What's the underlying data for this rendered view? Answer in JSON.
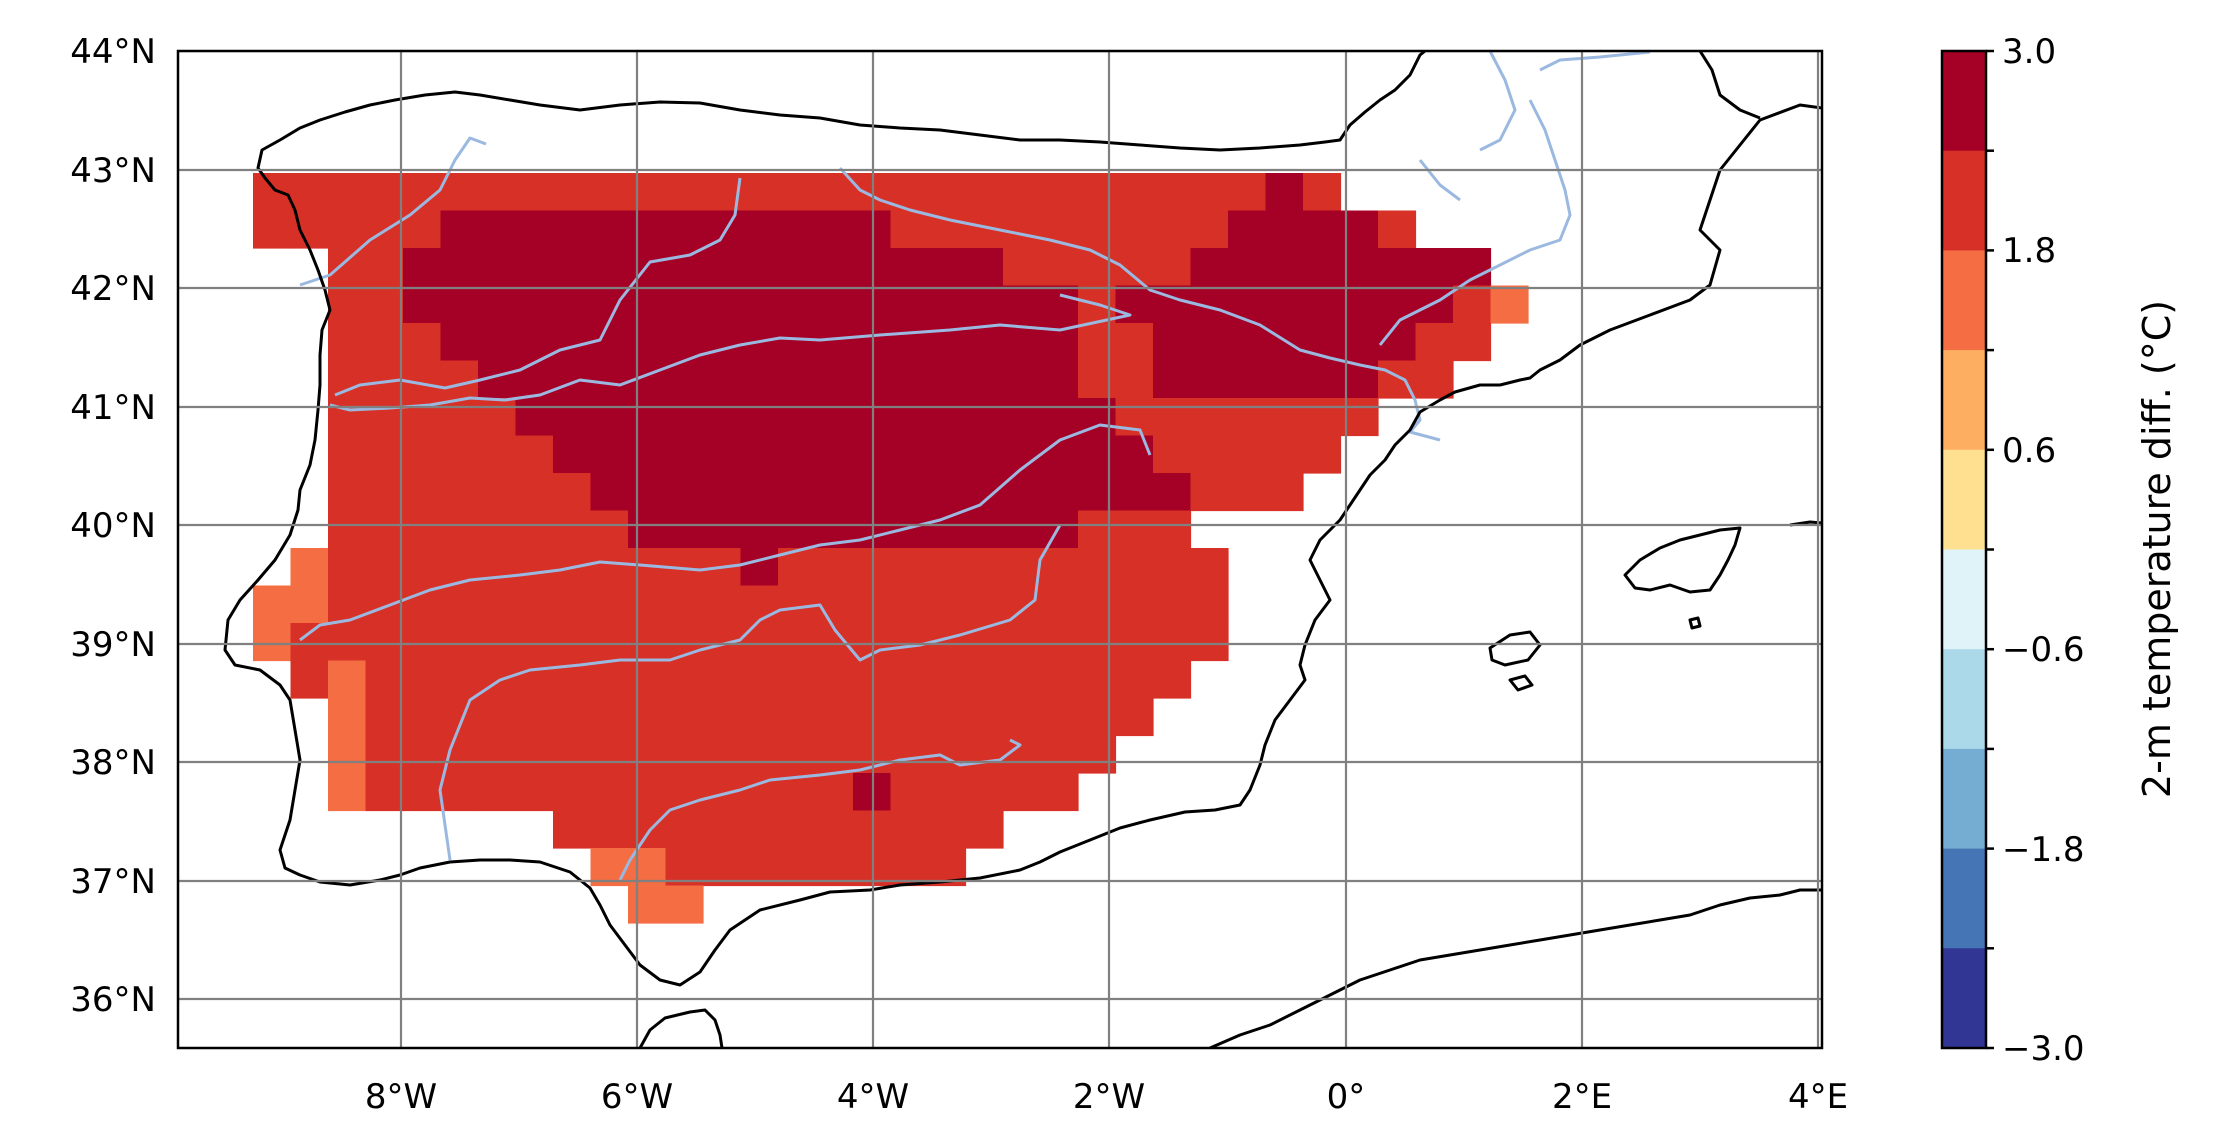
{
  "map": {
    "lat_ticks": [
      "44°N",
      "43°N",
      "42°N",
      "41°N",
      "40°N",
      "39°N",
      "38°N",
      "37°N",
      "36°N"
    ],
    "lon_ticks": [
      "8°W",
      "6°W",
      "4°W",
      "2°W",
      "0°",
      "2°E",
      "4°E"
    ],
    "extent_lon": [
      -9.9,
      4.0
    ],
    "extent_lat": [
      35.6,
      44.0
    ],
    "grid_color": "#808080",
    "coast_color": "#000000",
    "river_color": "#9bb9e0"
  },
  "colorbar": {
    "label": "2-m temperature diff. (°C)",
    "tick_labels": [
      "3.0",
      "1.8",
      "0.6",
      "−0.6",
      "−1.8",
      "−3.0"
    ],
    "tick_values": [
      3.0,
      1.8,
      0.6,
      -0.6,
      -1.8,
      -3.0
    ],
    "colors_high_to_low": [
      "#a50026",
      "#d73027",
      "#f46d43",
      "#fdae61",
      "#fee090",
      "#e0f3f8",
      "#abd9e9",
      "#74add1",
      "#4575b4",
      "#313695"
    ]
  },
  "chart_data": {
    "type": "heatmap",
    "xlabel": "",
    "ylabel": "",
    "value_label": "2-m temperature diff. (°C)",
    "value_range": [
      -3.0,
      3.0
    ],
    "dominant_classes": [
      {
        "range": [
          2.4,
          3.0
        ],
        "color": "#a50026"
      },
      {
        "range": [
          1.8,
          2.4
        ],
        "color": "#d73027"
      },
      {
        "range": [
          1.2,
          1.8
        ],
        "color": "#f46d43"
      }
    ]
  }
}
